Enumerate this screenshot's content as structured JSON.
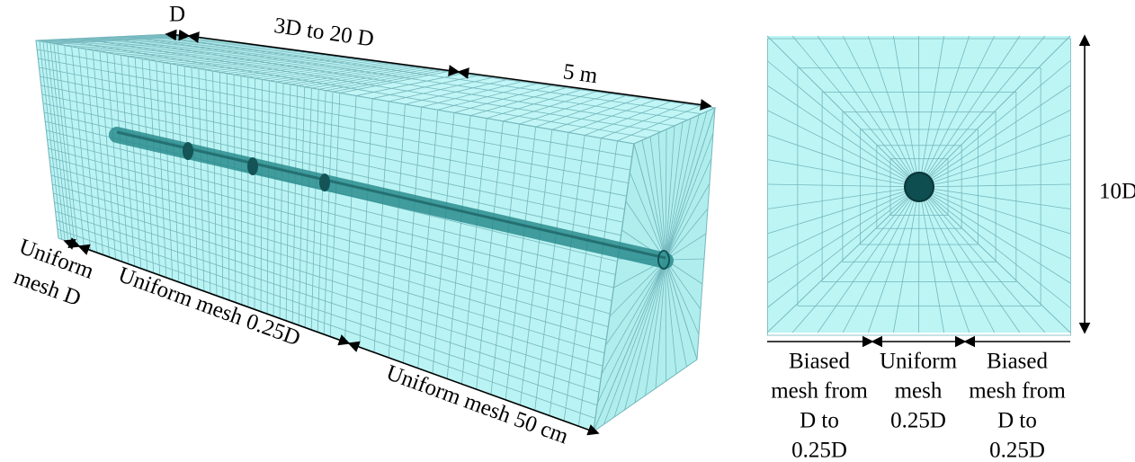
{
  "left_view": {
    "top_dims": [
      "D",
      "3D to 20 D",
      "5 m"
    ],
    "bottom_dims": [
      [
        "Uniform",
        "mesh D"
      ],
      "Uniform mesh 0.25D",
      "Uniform mesh 50 cm"
    ]
  },
  "right_view": {
    "height_dim": "10D",
    "bottom_dims": [
      [
        "Biased",
        "mesh from",
        "D to",
        "0.25D"
      ],
      [
        "Uniform",
        "mesh",
        "0.25D"
      ],
      [
        "Biased",
        "mesh from",
        "D to",
        "0.25D"
      ]
    ]
  }
}
